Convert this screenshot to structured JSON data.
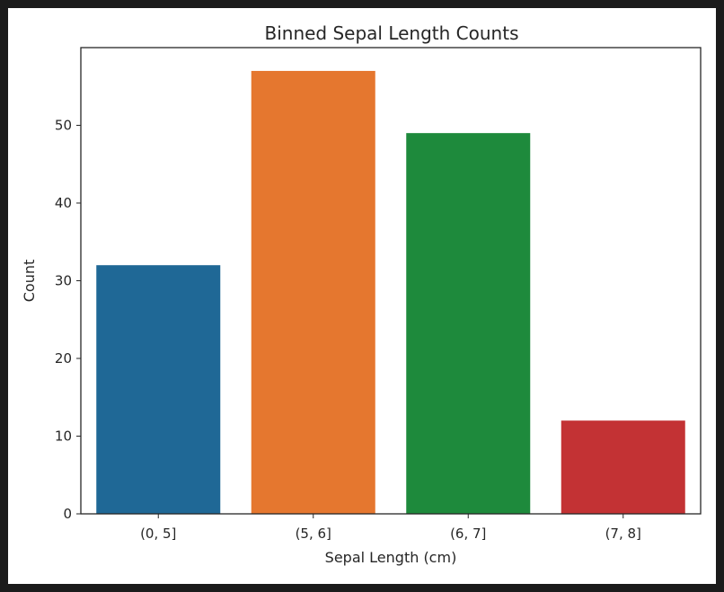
{
  "chart_data": {
    "type": "bar",
    "title": "Binned Sepal Length Counts",
    "xlabel": "Sepal Length (cm)",
    "ylabel": "Count",
    "categories": [
      "(0, 5]",
      "(5, 6]",
      "(6, 7]",
      "(7, 8]"
    ],
    "values": [
      32,
      57,
      49,
      12
    ],
    "colors": [
      "#1f6896",
      "#e5772f",
      "#1e8a3c",
      "#c33234"
    ],
    "ylim": [
      0,
      60
    ],
    "yticks": [
      0,
      10,
      20,
      30,
      40,
      50
    ],
    "grid": false,
    "legend": "none"
  }
}
